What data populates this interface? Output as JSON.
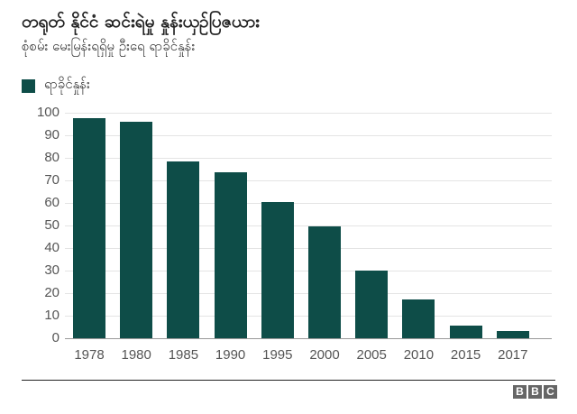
{
  "header": {
    "title": "တရုတ် နိုင်ငံ ဆင်းရဲမှု နှုန်းယှဉ်ပြဇယား",
    "subtitle": "စုံစမ်း မေးမြန်းရရှိမှု ဦးရေ ရာခိုင်နှုန်း"
  },
  "legend": {
    "label": "ရာခိုင်နှုန်း",
    "color": "#0e4d48"
  },
  "footer": {
    "brand": [
      "B",
      "B",
      "C"
    ]
  },
  "chart_data": {
    "type": "bar",
    "title": "တရုတ် နိုင်ငံ ဆင်းရဲမှု နှုန်းယှဉ်ပြဇယား",
    "subtitle": "စုံစမ်း မေးမြန်းရရှိမှု ဦးရေ ရာခိုင်နှုန်း",
    "categories": [
      "1978",
      "1980",
      "1985",
      "1990",
      "1995",
      "2000",
      "2005",
      "2010",
      "2015",
      "2017"
    ],
    "series": [
      {
        "name": "ရာခိုင်နှုန်း",
        "values": [
          97.5,
          96.2,
          78.3,
          73.5,
          60.5,
          49.8,
          30.2,
          17.2,
          5.7,
          3.1
        ],
        "color": "#0e4d48"
      }
    ],
    "xlabel": "",
    "ylabel": "",
    "ylim": [
      0,
      100
    ],
    "yticks": [
      "0",
      "10",
      "20",
      "30",
      "40",
      "50",
      "60",
      "70",
      "80",
      "90",
      "100"
    ],
    "grid": true,
    "legend_position": "top-left"
  }
}
